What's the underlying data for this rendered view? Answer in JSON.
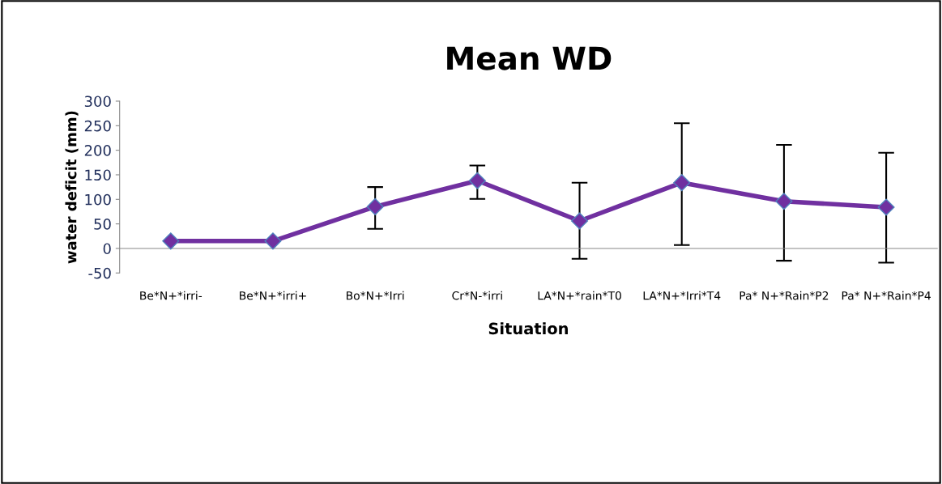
{
  "chart_data": {
    "type": "line",
    "title": "Mean WD",
    "xlabel": "Situation",
    "ylabel": "water deficit (mm)",
    "categories": [
      "Be*N+*irri-",
      "Be*N+*irri+",
      "Bo*N+*Irri",
      "Cr*N-*irri",
      "LA*N+*rain*T0",
      "LA*N+*Irri*T4",
      "Pa* N+*Rain*P2",
      "Pa* N+*Rain*P4"
    ],
    "values": [
      15,
      15,
      85,
      138,
      56,
      134,
      96,
      84
    ],
    "errors": [
      null,
      null,
      [
        40,
        125
      ],
      [
        101,
        169
      ],
      [
        -21,
        134
      ],
      [
        7,
        255
      ],
      [
        -25,
        211
      ],
      [
        -29,
        195
      ]
    ],
    "color": "#7030a0",
    "marker": "diamond",
    "line_style": "solid",
    "ylim": [
      -50,
      300
    ],
    "yticks": [
      -50,
      0,
      50,
      100,
      150,
      200,
      250,
      300
    ],
    "grid": false,
    "legend": false
  }
}
